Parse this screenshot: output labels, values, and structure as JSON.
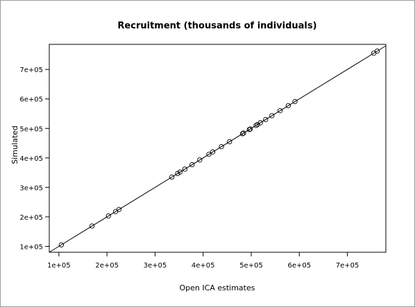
{
  "chart_data": {
    "type": "scatter",
    "title": "Recruitment (thousands of individuals)",
    "xlabel": "Open ICA estimates",
    "ylabel": "Simulated",
    "xlim": [
      80000,
      780000
    ],
    "ylim": [
      80000,
      785000
    ],
    "x_ticks": [
      100000,
      200000,
      300000,
      400000,
      500000,
      600000,
      700000
    ],
    "x_tick_labels": [
      "1e+05",
      "2e+05",
      "3e+05",
      "4e+05",
      "5e+05",
      "6e+05",
      "7e+05"
    ],
    "y_ticks": [
      100000,
      200000,
      300000,
      400000,
      500000,
      600000,
      700000
    ],
    "y_tick_labels": [
      "1e+05",
      "2e+05",
      "3e+05",
      "4e+05",
      "5e+05",
      "6e+05",
      "7e+05"
    ],
    "grid": false,
    "reference_line": {
      "type": "identity",
      "slope": 1,
      "intercept": 0
    },
    "series": [
      {
        "marker": "open-circle",
        "color": "#000000",
        "x": [
          105000,
          169000,
          203000,
          218000,
          225000,
          335000,
          347000,
          352000,
          362000,
          377000,
          393000,
          412000,
          420000,
          438000,
          455000,
          482000,
          484000,
          496000,
          498000,
          510000,
          513000,
          519000,
          530000,
          543000,
          560000,
          577000,
          591000,
          755000,
          762000
        ],
        "y": [
          105000,
          169000,
          203000,
          218000,
          225000,
          335000,
          347000,
          352000,
          362000,
          377000,
          393000,
          412000,
          420000,
          438000,
          455000,
          482000,
          484000,
          496000,
          498000,
          510000,
          513000,
          519000,
          530000,
          543000,
          560000,
          577000,
          591000,
          755000,
          762000
        ]
      }
    ]
  }
}
